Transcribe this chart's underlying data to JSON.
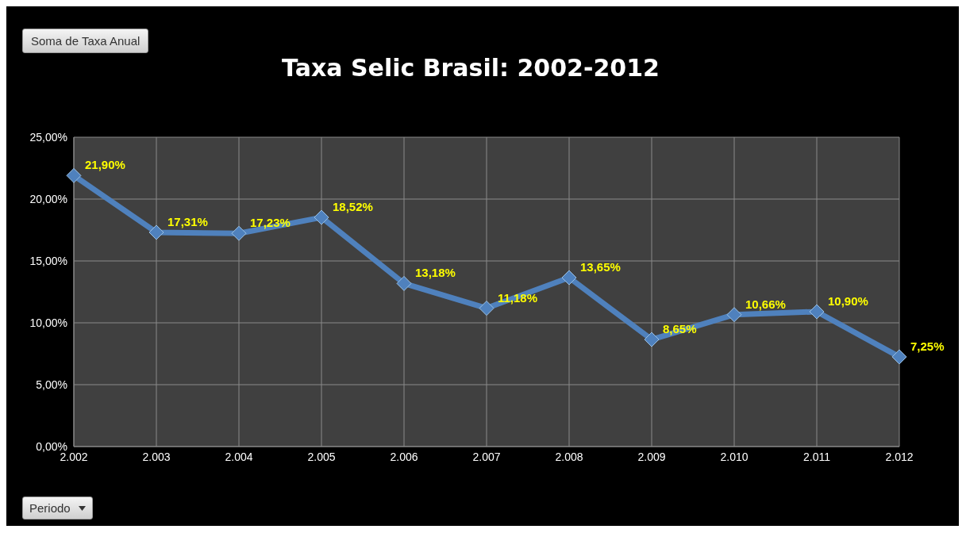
{
  "chart_data": {
    "type": "line",
    "title": "Taxa Selic Brasil: 2002-2012",
    "annotations": [
      "Soma de Taxa Anual",
      "Periodo"
    ],
    "categories": [
      "2.002",
      "2.003",
      "2.004",
      "2.005",
      "2.006",
      "2.007",
      "2.008",
      "2.009",
      "2.010",
      "2.011",
      "2.012"
    ],
    "series": [
      {
        "color": "#4f81bd",
        "values": [
          21.9,
          17.31,
          17.23,
          18.52,
          13.18,
          11.18,
          13.65,
          8.65,
          10.66,
          10.9,
          7.25
        ],
        "value_labels": [
          "21,90%",
          "17,31%",
          "17,23%",
          "18,52%",
          "13,18%",
          "11,18%",
          "13,65%",
          "8,65%",
          "10,66%",
          "10,90%",
          "7,25%"
        ]
      }
    ],
    "ylim": [
      0,
      25
    ],
    "yticks": [
      {
        "value": 0,
        "label": "0,00%"
      },
      {
        "value": 5,
        "label": "5,00%"
      },
      {
        "value": 10,
        "label": "10,00%"
      },
      {
        "value": 15,
        "label": "15,00%"
      },
      {
        "value": 20,
        "label": "20,00%"
      },
      {
        "value": 25,
        "label": "25,00%"
      }
    ],
    "grid": true,
    "legend": false,
    "marker": "diamond",
    "line_style": "solid"
  }
}
